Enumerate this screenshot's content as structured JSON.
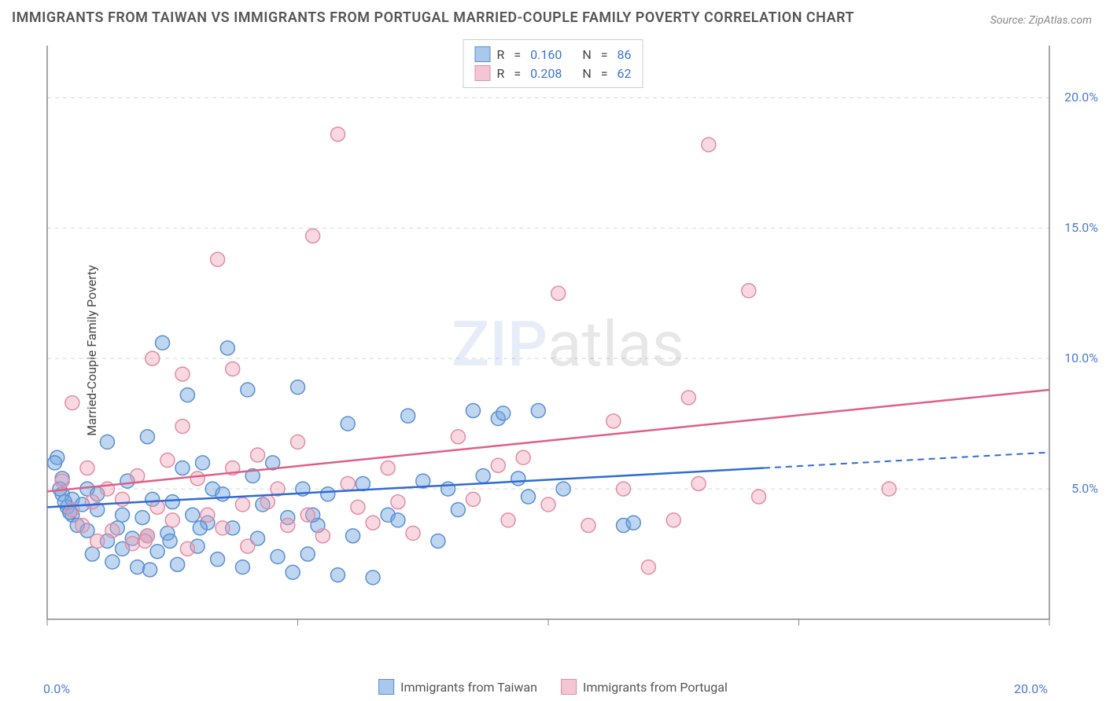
{
  "title": "IMMIGRANTS FROM TAIWAN VS IMMIGRANTS FROM PORTUGAL MARRIED-COUPLE FAMILY POVERTY CORRELATION CHART",
  "source": "Source: ZipAtlas.com",
  "y_axis_label": "Married-Couple Family Poverty",
  "watermark": {
    "prefix": "ZIP",
    "suffix": "atlas"
  },
  "chart": {
    "type": "scatter",
    "background_color": "#ffffff",
    "axis_color": "#888888",
    "grid_color": "#d8d8d8",
    "tick_label_color": "#4a7bd0",
    "xlim": [
      0,
      20
    ],
    "ylim": [
      0,
      22
    ],
    "x_ticks": [
      0,
      5,
      10,
      15,
      20
    ],
    "x_tick_labels": [
      "0.0%",
      "",
      "",
      "",
      "20.0%"
    ],
    "y_ticks": [
      5,
      10,
      15,
      20
    ],
    "y_tick_labels": [
      "5.0%",
      "10.0%",
      "15.0%",
      "20.0%"
    ],
    "marker_radius": 9,
    "marker_stroke_width": 1.5,
    "trend_line_width": 2.5
  },
  "series": [
    {
      "name": "Immigrants from Taiwan",
      "fill_color": "rgba(112,163,224,0.45)",
      "stroke_color": "#5a8fd0",
      "swatch_fill": "#a8c8ec",
      "swatch_stroke": "#5a8fd0",
      "R": "0.160",
      "N": "86",
      "trend": {
        "x1": 0,
        "y1": 4.3,
        "x2": 14.3,
        "y2": 5.8,
        "x2_ext": 20,
        "y2_ext": 6.4,
        "color": "#2f6bd4"
      },
      "points": [
        [
          0.2,
          6.2
        ],
        [
          0.3,
          4.8
        ],
        [
          0.3,
          5.4
        ],
        [
          0.4,
          4.3
        ],
        [
          0.5,
          4.0
        ],
        [
          0.5,
          4.6
        ],
        [
          0.6,
          3.6
        ],
        [
          0.7,
          4.4
        ],
        [
          0.8,
          3.4
        ],
        [
          0.8,
          5.0
        ],
        [
          0.9,
          2.5
        ],
        [
          1.0,
          4.2
        ],
        [
          1.0,
          4.8
        ],
        [
          1.2,
          3.0
        ],
        [
          1.2,
          6.8
        ],
        [
          1.3,
          2.2
        ],
        [
          1.4,
          3.5
        ],
        [
          1.5,
          4.0
        ],
        [
          1.5,
          2.7
        ],
        [
          1.6,
          5.3
        ],
        [
          1.8,
          2.0
        ],
        [
          1.9,
          3.9
        ],
        [
          2.0,
          7.0
        ],
        [
          2.0,
          3.2
        ],
        [
          2.1,
          4.6
        ],
        [
          2.2,
          2.6
        ],
        [
          2.3,
          10.6
        ],
        [
          2.4,
          3.3
        ],
        [
          2.5,
          4.5
        ],
        [
          2.6,
          2.1
        ],
        [
          2.7,
          5.8
        ],
        [
          2.8,
          8.6
        ],
        [
          2.9,
          4.0
        ],
        [
          3.0,
          2.8
        ],
        [
          3.1,
          6.0
        ],
        [
          3.2,
          3.7
        ],
        [
          3.3,
          5.0
        ],
        [
          3.4,
          2.3
        ],
        [
          3.5,
          4.8
        ],
        [
          3.6,
          10.4
        ],
        [
          3.7,
          3.5
        ],
        [
          3.9,
          2.0
        ],
        [
          4.0,
          8.8
        ],
        [
          4.1,
          5.5
        ],
        [
          4.2,
          3.1
        ],
        [
          4.3,
          4.4
        ],
        [
          4.5,
          6.0
        ],
        [
          4.6,
          2.4
        ],
        [
          4.8,
          3.9
        ],
        [
          5.0,
          8.9
        ],
        [
          5.1,
          5.0
        ],
        [
          5.2,
          2.5
        ],
        [
          5.4,
          3.6
        ],
        [
          5.6,
          4.8
        ],
        [
          5.8,
          1.7
        ],
        [
          6.0,
          7.5
        ],
        [
          6.1,
          3.2
        ],
        [
          6.3,
          5.2
        ],
        [
          6.5,
          1.6
        ],
        [
          6.8,
          4.0
        ],
        [
          7.0,
          3.8
        ],
        [
          7.2,
          7.8
        ],
        [
          7.5,
          5.3
        ],
        [
          7.8,
          3.0
        ],
        [
          8.0,
          5.0
        ],
        [
          8.2,
          4.2
        ],
        [
          8.5,
          8.0
        ],
        [
          8.7,
          5.5
        ],
        [
          9.0,
          7.7
        ],
        [
          9.1,
          7.9
        ],
        [
          9.4,
          5.4
        ],
        [
          9.6,
          4.7
        ],
        [
          9.8,
          8.0
        ],
        [
          10.3,
          5.0
        ],
        [
          11.5,
          3.6
        ],
        [
          11.7,
          3.7
        ],
        [
          0.15,
          6.0
        ],
        [
          0.25,
          5.0
        ],
        [
          0.35,
          4.5
        ],
        [
          0.45,
          4.1
        ],
        [
          1.7,
          3.1
        ],
        [
          2.05,
          1.9
        ],
        [
          2.45,
          3.0
        ],
        [
          3.05,
          3.5
        ],
        [
          4.9,
          1.8
        ],
        [
          5.3,
          4.0
        ]
      ]
    },
    {
      "name": "Immigrants from Portugal",
      "fill_color": "rgba(238,160,180,0.40)",
      "stroke_color": "#e38ca4",
      "swatch_fill": "#f4c6d3",
      "swatch_stroke": "#e38ca4",
      "R": "0.208",
      "N": "62",
      "trend": {
        "x1": 0,
        "y1": 4.9,
        "x2": 20,
        "y2": 8.8,
        "color": "#de5f86"
      },
      "points": [
        [
          0.3,
          5.3
        ],
        [
          0.5,
          8.3
        ],
        [
          0.5,
          4.2
        ],
        [
          0.7,
          3.6
        ],
        [
          0.8,
          5.8
        ],
        [
          0.9,
          4.5
        ],
        [
          1.0,
          3.0
        ],
        [
          1.2,
          5.0
        ],
        [
          1.3,
          3.4
        ],
        [
          1.5,
          4.6
        ],
        [
          1.7,
          2.9
        ],
        [
          1.8,
          5.5
        ],
        [
          2.0,
          3.2
        ],
        [
          2.1,
          10.0
        ],
        [
          2.2,
          4.3
        ],
        [
          2.4,
          6.1
        ],
        [
          2.5,
          3.8
        ],
        [
          2.7,
          7.4
        ],
        [
          2.7,
          9.4
        ],
        [
          2.8,
          2.7
        ],
        [
          3.0,
          5.4
        ],
        [
          3.2,
          4.0
        ],
        [
          3.4,
          13.8
        ],
        [
          3.5,
          3.5
        ],
        [
          3.7,
          5.8
        ],
        [
          3.9,
          4.4
        ],
        [
          4.0,
          2.8
        ],
        [
          4.2,
          6.3
        ],
        [
          4.4,
          4.5
        ],
        [
          4.6,
          5.0
        ],
        [
          4.8,
          3.6
        ],
        [
          5.0,
          6.8
        ],
        [
          5.2,
          4.0
        ],
        [
          5.3,
          14.7
        ],
        [
          5.5,
          3.2
        ],
        [
          5.8,
          18.6
        ],
        [
          6.0,
          5.2
        ],
        [
          6.2,
          4.3
        ],
        [
          6.5,
          3.7
        ],
        [
          6.8,
          5.8
        ],
        [
          7.0,
          4.5
        ],
        [
          7.3,
          3.3
        ],
        [
          8.2,
          7.0
        ],
        [
          8.5,
          4.6
        ],
        [
          9.0,
          5.9
        ],
        [
          9.2,
          3.8
        ],
        [
          9.5,
          6.2
        ],
        [
          10.0,
          4.4
        ],
        [
          10.2,
          12.5
        ],
        [
          10.8,
          3.6
        ],
        [
          11.3,
          7.6
        ],
        [
          11.5,
          5.0
        ],
        [
          12.5,
          3.8
        ],
        [
          12.8,
          8.5
        ],
        [
          13.2,
          18.2
        ],
        [
          13.0,
          5.2
        ],
        [
          14.0,
          12.6
        ],
        [
          14.2,
          4.7
        ],
        [
          12.0,
          2.0
        ],
        [
          16.8,
          5.0
        ],
        [
          3.7,
          9.6
        ],
        [
          1.95,
          3.0
        ]
      ]
    }
  ],
  "legend_top_labels": {
    "R": "R",
    "N": "N",
    "eq": "="
  },
  "legend_bottom_series": [
    "Immigrants from Taiwan",
    "Immigrants from Portugal"
  ]
}
